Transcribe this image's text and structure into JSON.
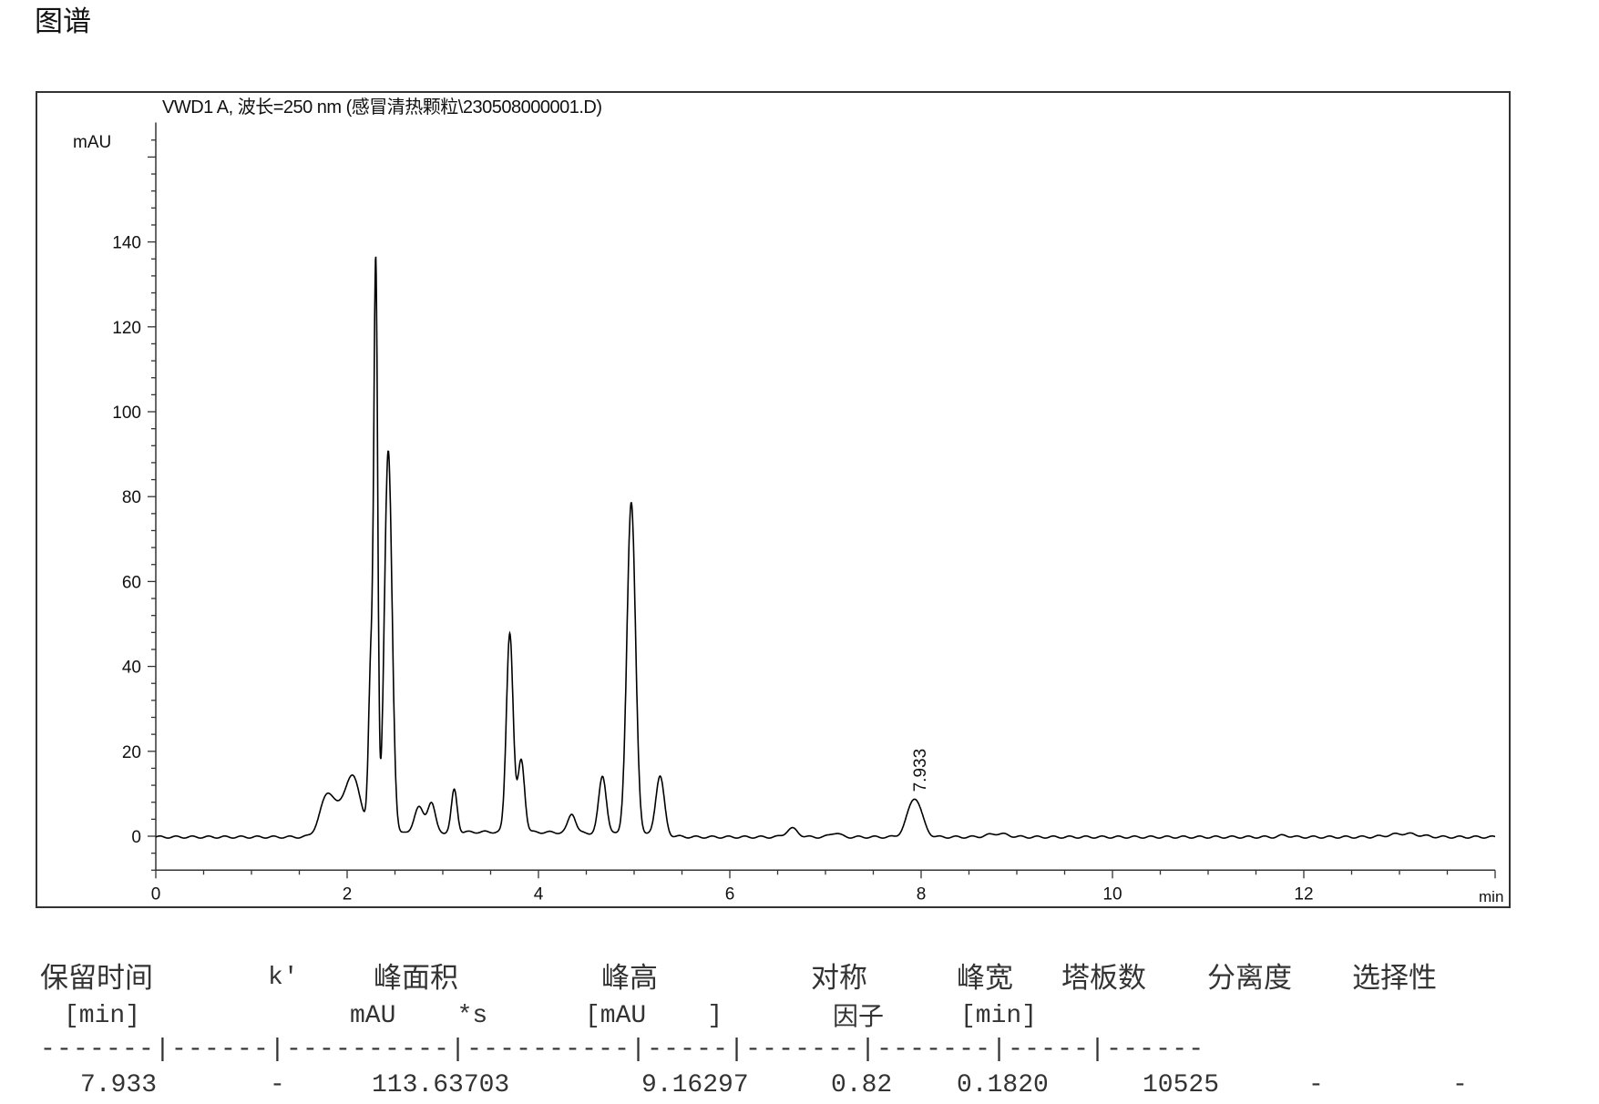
{
  "heading": "图谱",
  "chart_data": {
    "type": "line",
    "title": "VWD1 A, 波长=250 nm (感冒清热颗粒\\230508000001.D)",
    "ylabel": "mAU",
    "xlabel": "min",
    "xlim": [
      0,
      14
    ],
    "ylim": [
      -8,
      166
    ],
    "xticks": [
      0,
      2,
      4,
      6,
      8,
      10,
      12
    ],
    "yticks": [
      0,
      20,
      40,
      60,
      80,
      100,
      120,
      140
    ],
    "grid": false,
    "line_color": "#000000",
    "peaks": [
      {
        "rt": 1.8,
        "height": 10,
        "width": 0.08
      },
      {
        "rt": 2.05,
        "height": 14,
        "width": 0.09
      },
      {
        "rt": 2.25,
        "height": 40,
        "width": 0.025
      },
      {
        "rt": 2.3,
        "height": 130,
        "width": 0.02
      },
      {
        "rt": 2.43,
        "height": 90,
        "width": 0.04
      },
      {
        "rt": 2.75,
        "height": 6,
        "width": 0.05
      },
      {
        "rt": 2.88,
        "height": 7,
        "width": 0.04
      },
      {
        "rt": 3.12,
        "height": 10,
        "width": 0.03
      },
      {
        "rt": 3.7,
        "height": 47,
        "width": 0.035
      },
      {
        "rt": 3.82,
        "height": 17,
        "width": 0.035
      },
      {
        "rt": 4.35,
        "height": 4.5,
        "width": 0.04
      },
      {
        "rt": 4.67,
        "height": 13.5,
        "width": 0.04
      },
      {
        "rt": 4.97,
        "height": 78,
        "width": 0.045
      },
      {
        "rt": 5.27,
        "height": 14,
        "width": 0.045
      },
      {
        "rt": 6.65,
        "height": 2,
        "width": 0.06
      },
      {
        "rt": 7.1,
        "height": 1,
        "width": 0.05
      },
      {
        "rt": 7.933,
        "height": 9.16,
        "width": 0.075
      },
      {
        "rt": 8.8,
        "height": 0.8,
        "width": 0.1
      },
      {
        "rt": 11.8,
        "height": 0.4,
        "width": 0.05
      },
      {
        "rt": 13.05,
        "height": 0.8,
        "width": 0.15
      }
    ],
    "annotations": [
      {
        "x": 7.933,
        "text": "7.933"
      }
    ]
  },
  "table": {
    "headers": [
      "保留时间",
      "k'",
      "峰面积",
      "峰高",
      "对称",
      "峰宽",
      "塔板数",
      "分离度",
      "选择性"
    ],
    "units": [
      "[min]",
      "",
      "mAU    *s",
      "[mAU    ]",
      "因子",
      "[min]",
      "",
      "",
      ""
    ],
    "separator": "-------|------|----------|----------|-----|-------|-------|-----|------",
    "rows": [
      [
        "7.933",
        "-",
        "113.63703",
        "9.16297",
        "0.82",
        "0.1820",
        "10525",
        "-",
        "-"
      ]
    ]
  }
}
